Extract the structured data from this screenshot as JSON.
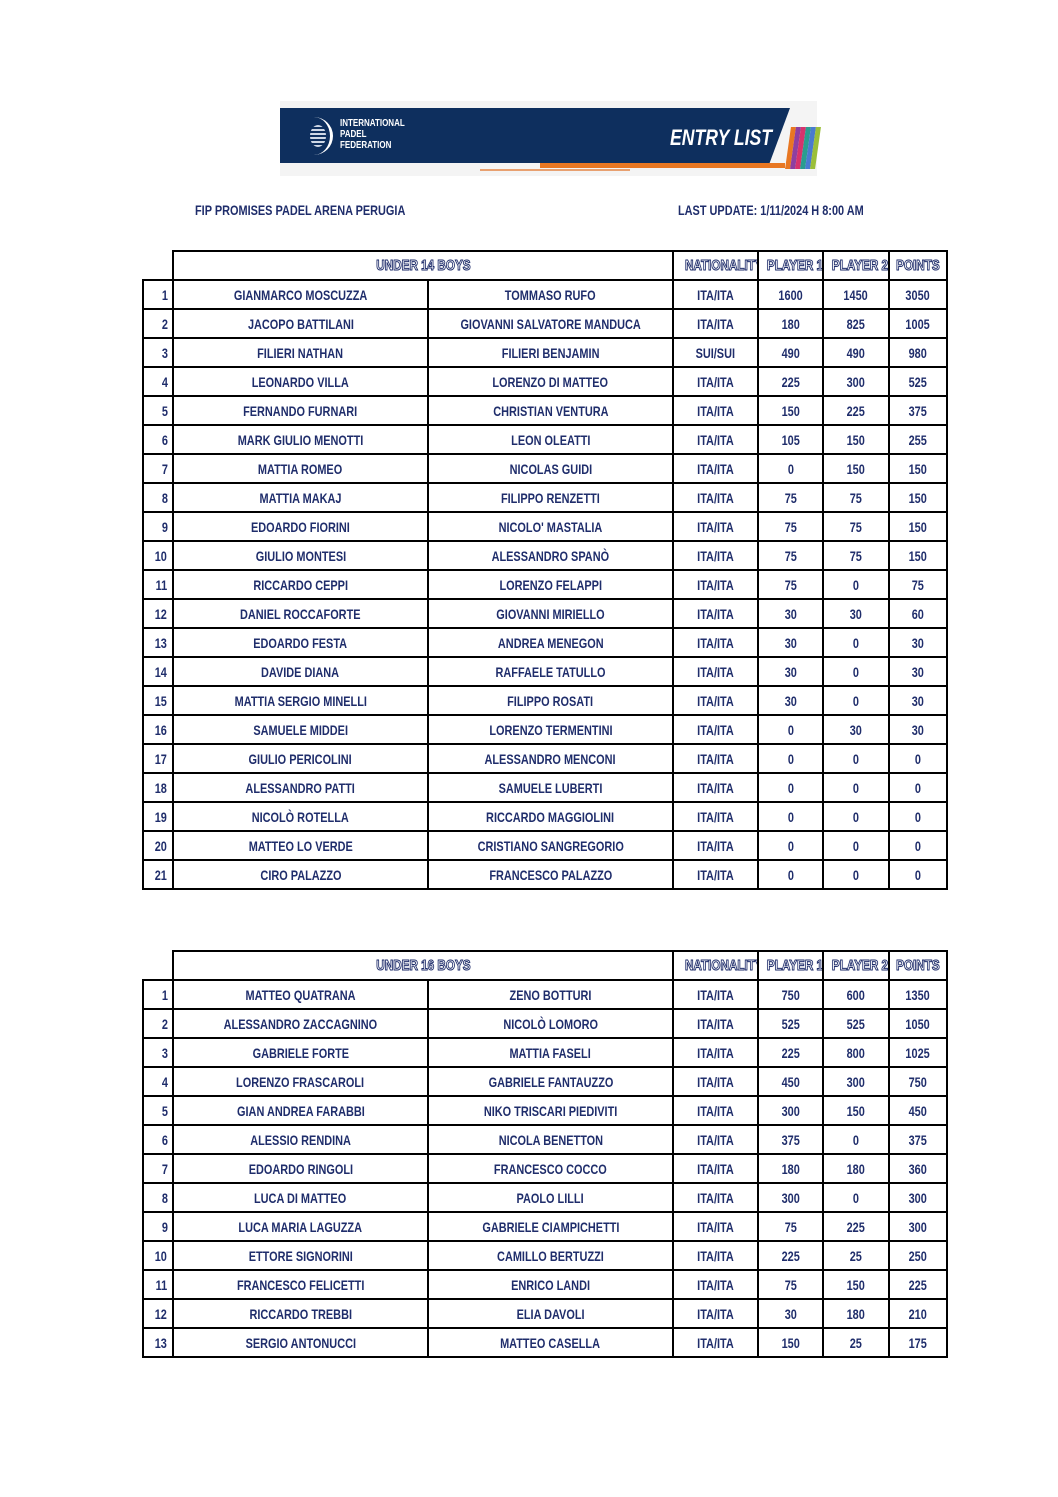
{
  "banner": {
    "org": [
      "INTERNATIONAL",
      "PADEL",
      "FEDERATION"
    ],
    "title": "ENTRY LIST",
    "stripe_colors": [
      "#e87722",
      "#8e3fa0",
      "#d6336c",
      "#2a9d8f",
      "#4a7bd0",
      "#9bbf3a"
    ]
  },
  "tournament": "FIP PROMISES PADEL ARENA PERUGIA",
  "last_update": "LAST UPDATE: 1/11/2024 H 8:00 AM",
  "columns": {
    "nationality": "NATIONALITY",
    "player1": "PLAYER 1",
    "player2": "PLAYER 2",
    "points": "POINTS"
  },
  "tables": [
    {
      "category": "UNDER 14 BOYS",
      "rows": [
        [
          "1",
          "GIANMARCO MOSCUZZA",
          "TOMMASO RUFO",
          "ITA/ITA",
          "1600",
          "1450",
          "3050"
        ],
        [
          "2",
          "JACOPO BATTILANI",
          "GIOVANNI SALVATORE MANDUCA",
          "ITA/ITA",
          "180",
          "825",
          "1005"
        ],
        [
          "3",
          "FILIERI NATHAN",
          "FILIERI BENJAMIN",
          "SUI/SUI",
          "490",
          "490",
          "980"
        ],
        [
          "4",
          "LEONARDO VILLA",
          "LORENZO DI MATTEO",
          "ITA/ITA",
          "225",
          "300",
          "525"
        ],
        [
          "5",
          "FERNANDO FURNARI",
          "CHRISTIAN VENTURA",
          "ITA/ITA",
          "150",
          "225",
          "375"
        ],
        [
          "6",
          "MARK GIULIO MENOTTI",
          "LEON OLEATTI",
          "ITA/ITA",
          "105",
          "150",
          "255"
        ],
        [
          "7",
          "MATTIA ROMEO",
          "NICOLAS GUIDI",
          "ITA/ITA",
          "0",
          "150",
          "150"
        ],
        [
          "8",
          "MATTIA MAKAJ",
          "FILIPPO RENZETTI",
          "ITA/ITA",
          "75",
          "75",
          "150"
        ],
        [
          "9",
          "EDOARDO FIORINI",
          "NICOLO' MASTALIA",
          "ITA/ITA",
          "75",
          "75",
          "150"
        ],
        [
          "10",
          "GIULIO MONTESI",
          "ALESSANDRO SPANÒ",
          "ITA/ITA",
          "75",
          "75",
          "150"
        ],
        [
          "11",
          "RICCARDO CEPPI",
          "LORENZO FELAPPI",
          "ITA/ITA",
          "75",
          "0",
          "75"
        ],
        [
          "12",
          "DANIEL ROCCAFORTE",
          "GIOVANNI MIRIELLO",
          "ITA/ITA",
          "30",
          "30",
          "60"
        ],
        [
          "13",
          "EDOARDO FESTA",
          "ANDREA MENEGON",
          "ITA/ITA",
          "30",
          "0",
          "30"
        ],
        [
          "14",
          "DAVIDE DIANA",
          "RAFFAELE TATULLO",
          "ITA/ITA",
          "30",
          "0",
          "30"
        ],
        [
          "15",
          "MATTIA SERGIO MINELLI",
          "FILIPPO ROSATI",
          "ITA/ITA",
          "30",
          "0",
          "30"
        ],
        [
          "16",
          "SAMUELE MIDDEI",
          "LORENZO TERMENTINI",
          "ITA/ITA",
          "0",
          "30",
          "30"
        ],
        [
          "17",
          "GIULIO PERICOLINI",
          "ALESSANDRO MENCONI",
          "ITA/ITA",
          "0",
          "0",
          "0"
        ],
        [
          "18",
          "ALESSANDRO PATTI",
          "SAMUELE LUBERTI",
          "ITA/ITA",
          "0",
          "0",
          "0"
        ],
        [
          "19",
          "NICOLÒ ROTELLA",
          "RICCARDO MAGGIOLINI",
          "ITA/ITA",
          "0",
          "0",
          "0"
        ],
        [
          "20",
          "MATTEO LO VERDE",
          "CRISTIANO SANGREGORIO",
          "ITA/ITA",
          "0",
          "0",
          "0"
        ],
        [
          "21",
          "CIRO PALAZZO",
          "FRANCESCO PALAZZO",
          "ITA/ITA",
          "0",
          "0",
          "0"
        ]
      ]
    },
    {
      "category": "UNDER 16 BOYS",
      "rows": [
        [
          "1",
          "MATTEO QUATRANA",
          "ZENO BOTTURI",
          "ITA/ITA",
          "750",
          "600",
          "1350"
        ],
        [
          "2",
          "ALESSANDRO ZACCAGNINO",
          "NICOLÒ LOMORO",
          "ITA/ITA",
          "525",
          "525",
          "1050"
        ],
        [
          "3",
          "GABRIELE FORTE",
          "MATTIA FASELI",
          "ITA/ITA",
          "225",
          "800",
          "1025"
        ],
        [
          "4",
          "LORENZO FRASCAROLI",
          "GABRIELE FANTAUZZO",
          "ITA/ITA",
          "450",
          "300",
          "750"
        ],
        [
          "5",
          "GIAN ANDREA FARABBI",
          "NIKO TRISCARI PIEDIVITI",
          "ITA/ITA",
          "300",
          "150",
          "450"
        ],
        [
          "6",
          "ALESSIO RENDINA",
          "NICOLA BENETTON",
          "ITA/ITA",
          "375",
          "0",
          "375"
        ],
        [
          "7",
          "EDOARDO RINGOLI",
          "FRANCESCO COCCO",
          "ITA/ITA",
          "180",
          "180",
          "360"
        ],
        [
          "8",
          "LUCA DI MATTEO",
          "PAOLO LILLI",
          "ITA/ITA",
          "300",
          "0",
          "300"
        ],
        [
          "9",
          "LUCA MARIA LAGUZZA",
          "GABRIELE CIAMPICHETTI",
          "ITA/ITA",
          "75",
          "225",
          "300"
        ],
        [
          "10",
          "ETTORE SIGNORINI",
          "CAMILLO BERTUZZI",
          "ITA/ITA",
          "225",
          "25",
          "250"
        ],
        [
          "11",
          "FRANCESCO FELICETTI",
          "ENRICO LANDI",
          "ITA/ITA",
          "75",
          "150",
          "225"
        ],
        [
          "12",
          "RICCARDO TREBBI",
          "ELIA DAVOLI",
          "ITA/ITA",
          "30",
          "180",
          "210"
        ],
        [
          "13",
          "SERGIO ANTONUCCI",
          "MATTEO CASELLA",
          "ITA/ITA",
          "150",
          "25",
          "175"
        ]
      ]
    }
  ]
}
